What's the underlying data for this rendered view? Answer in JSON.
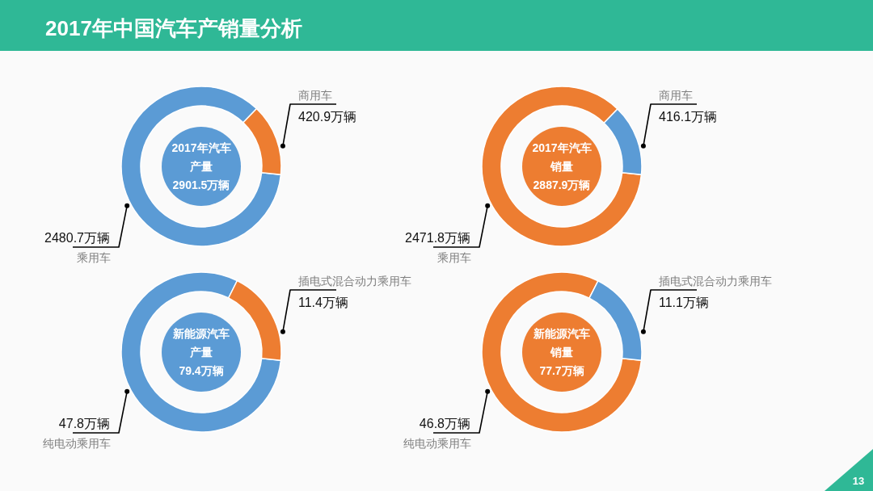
{
  "chart_data": [
    {
      "type": "other",
      "title": "2017年中国汽车产销量分析",
      "annotations": [
        "13"
      ]
    },
    {
      "type": "donut",
      "title": "2017年汽车产量",
      "subtitle": "2901.5万辆",
      "categories": [
        "乘用车",
        "商用车"
      ],
      "values": [
        2480.7,
        420.9
      ],
      "value_labels": [
        "2480.7万辆",
        "420.9万辆"
      ],
      "colors": [
        "#5b9bd5",
        "#ed7d31"
      ]
    },
    {
      "type": "donut",
      "title": "2017年汽车销量",
      "subtitle": "2887.9万辆",
      "categories": [
        "乘用车",
        "商用车"
      ],
      "values": [
        2471.8,
        416.1
      ],
      "value_labels": [
        "2471.8万辆",
        "416.1万辆"
      ],
      "colors": [
        "#ed7d31",
        "#5b9bd5"
      ]
    },
    {
      "type": "donut",
      "title": "新能源汽车产量",
      "subtitle": "79.4万辆",
      "categories": [
        "纯电动乘用车",
        "插电式混合动力乘用车"
      ],
      "values": [
        47.8,
        11.4
      ],
      "value_labels": [
        "47.8万辆",
        "11.4万辆"
      ],
      "colors": [
        "#5b9bd5",
        "#ed7d31"
      ]
    },
    {
      "type": "donut",
      "title": "新能源汽车销量",
      "subtitle": "77.7万辆",
      "categories": [
        "纯电动乘用车",
        "插电式混合动力乘用车"
      ],
      "values": [
        46.8,
        11.1
      ],
      "value_labels": [
        "46.8万辆",
        "11.1万辆"
      ],
      "colors": [
        "#ed7d31",
        "#5b9bd5"
      ]
    }
  ]
}
